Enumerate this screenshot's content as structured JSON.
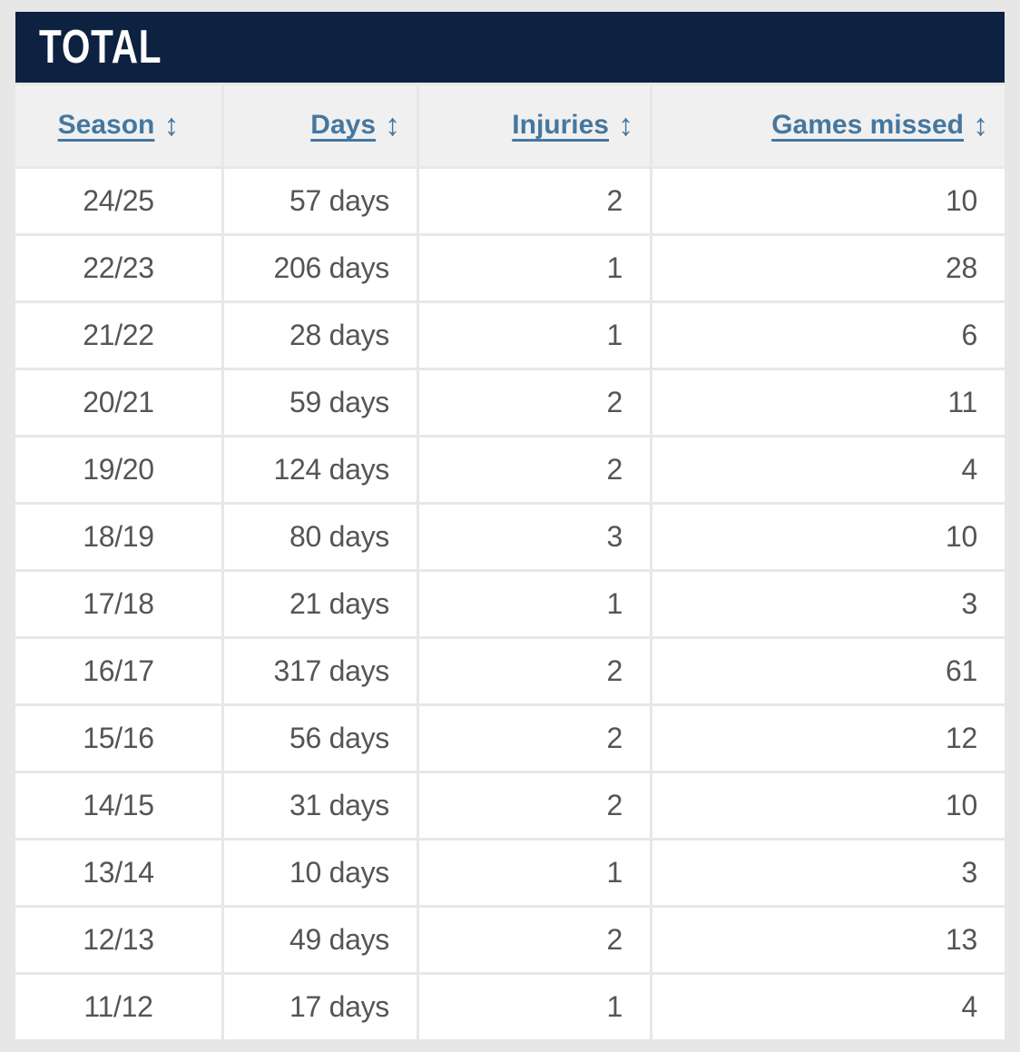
{
  "page": {
    "background_color": "#e7e7e7"
  },
  "panel": {
    "title": "TOTAL",
    "title_bar_color": "#0d2141",
    "title_text_color": "#ffffff"
  },
  "table": {
    "accent_color": "#45779f",
    "sort_icon": "↕",
    "columns": [
      {
        "label": "Season",
        "align": "center"
      },
      {
        "label": "Days",
        "align": "right"
      },
      {
        "label": "Injuries",
        "align": "right"
      },
      {
        "label": "Games missed",
        "align": "right"
      }
    ],
    "rows": [
      {
        "season": "24/25",
        "days": "57 days",
        "injuries": "2",
        "games_missed": "10"
      },
      {
        "season": "22/23",
        "days": "206 days",
        "injuries": "1",
        "games_missed": "28"
      },
      {
        "season": "21/22",
        "days": "28 days",
        "injuries": "1",
        "games_missed": "6"
      },
      {
        "season": "20/21",
        "days": "59 days",
        "injuries": "2",
        "games_missed": "11"
      },
      {
        "season": "19/20",
        "days": "124 days",
        "injuries": "2",
        "games_missed": "4"
      },
      {
        "season": "18/19",
        "days": "80 days",
        "injuries": "3",
        "games_missed": "10"
      },
      {
        "season": "17/18",
        "days": "21 days",
        "injuries": "1",
        "games_missed": "3"
      },
      {
        "season": "16/17",
        "days": "317 days",
        "injuries": "2",
        "games_missed": "61"
      },
      {
        "season": "15/16",
        "days": "56 days",
        "injuries": "2",
        "games_missed": "12"
      },
      {
        "season": "14/15",
        "days": "31 days",
        "injuries": "2",
        "games_missed": "10"
      },
      {
        "season": "13/14",
        "days": "10 days",
        "injuries": "1",
        "games_missed": "3"
      },
      {
        "season": "12/13",
        "days": "49 days",
        "injuries": "2",
        "games_missed": "13"
      },
      {
        "season": "11/12",
        "days": "17 days",
        "injuries": "1",
        "games_missed": "4"
      }
    ]
  }
}
